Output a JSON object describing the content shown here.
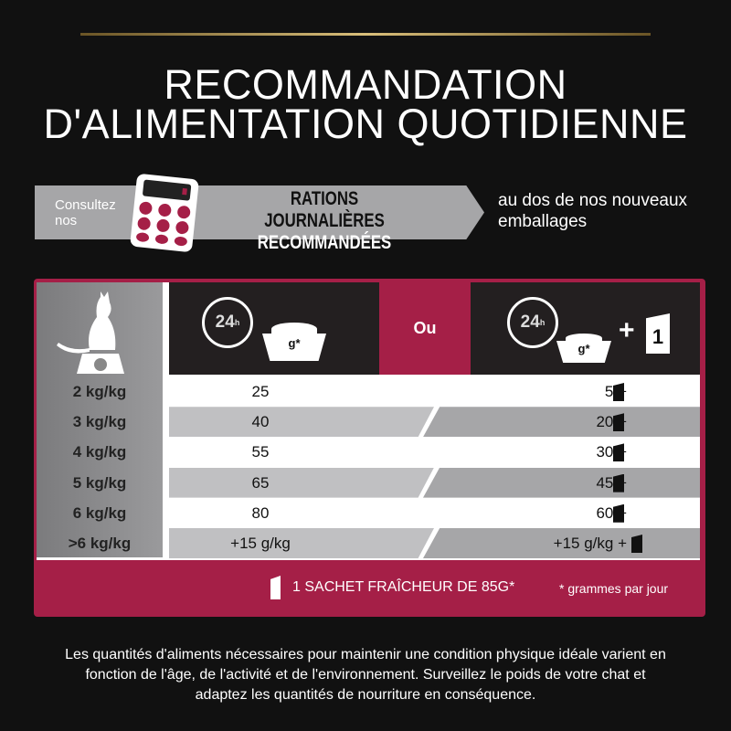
{
  "title": {
    "line1": "RECOMMANDATION",
    "line2": "D'ALIMENTATION QUOTIDIENNE"
  },
  "banner": {
    "consult": "Consultez nos",
    "rations_line1": "RATIONS JOURNALIÈRES",
    "rations_line2": "RECOMMANDÉES",
    "dos": "au dos de nos nouveaux emballages"
  },
  "header": {
    "clock": "24",
    "clock_unit": "h",
    "bowl": "g*",
    "or": "Ou",
    "plus": "+",
    "sachet_count": "1"
  },
  "rows": [
    {
      "weight": "2 kg/kg",
      "dry": "25",
      "mixed": "5 +"
    },
    {
      "weight": "3 kg/kg",
      "dry": "40",
      "mixed": "20 +"
    },
    {
      "weight": "4 kg/kg",
      "dry": "55",
      "mixed": "30 +"
    },
    {
      "weight": "5 kg/kg",
      "dry": "65",
      "mixed": "45 +"
    },
    {
      "weight": "6 kg/kg",
      "dry": "80",
      "mixed": "60 +"
    },
    {
      "weight": ">6  kg/kg",
      "dry": "+15 g/kg",
      "mixed": "+15 g/kg +"
    }
  ],
  "footer": {
    "sachet": "1 SACHET FRAÎCHEUR DE 85G*",
    "note": "* grammes par jour"
  },
  "disclaimer": "Les quantités d'aliments nécessaires pour maintenir une condition physique idéale varient en fonction de l'âge, de l'activité et de l'environnement. Surveillez le poids de votre chat et adaptez les quantités de nourriture en conséquence.",
  "colors": {
    "accent": "#a51f47",
    "background": "#111111",
    "gold": "#d9bf7a"
  }
}
